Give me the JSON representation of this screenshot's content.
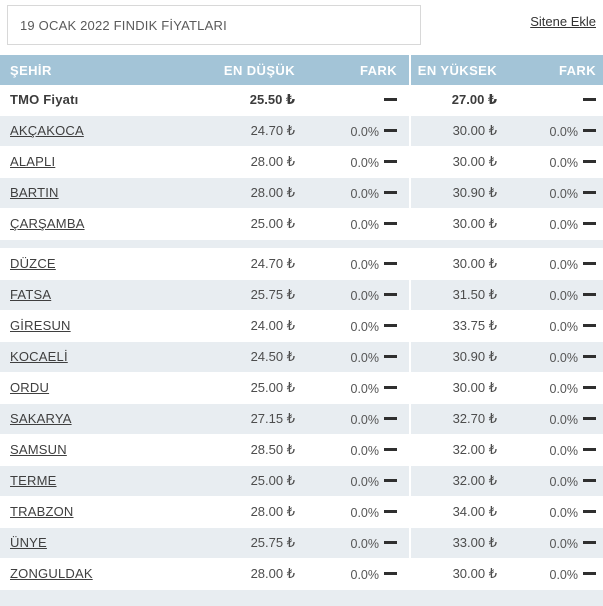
{
  "page": {
    "title": "19 OCAK 2022 FINDIK FİYATLARI",
    "add_link_label": "Sitene Ekle"
  },
  "colors": {
    "header_bg": "#a3c4d7",
    "header_text": "#ffffff",
    "stripe_row_bg": "#e8edf1",
    "white_row_bg": "#ffffff",
    "body_text": "#4d4d4d",
    "dash_icon": "#2f2f2f"
  },
  "table": {
    "headers": {
      "city": "ŞEHİR",
      "lowest": "EN DÜŞÜK",
      "diff_low": "FARK",
      "highest": "EN YÜKSEK",
      "diff_high": "FARK"
    },
    "rows": [
      {
        "city": "TMO Fiyatı",
        "lowest": "25.50 ₺",
        "diff_low": "",
        "highest": "27.00 ₺",
        "diff_high": "",
        "emphasis": true,
        "link": false
      },
      {
        "city": "AKÇAKOCA",
        "lowest": "24.70 ₺",
        "diff_low": "0.0%",
        "highest": "30.00 ₺",
        "diff_high": "0.0%",
        "emphasis": false,
        "link": true
      },
      {
        "city": "ALAPLI",
        "lowest": "28.00 ₺",
        "diff_low": "0.0%",
        "highest": "30.00 ₺",
        "diff_high": "0.0%",
        "emphasis": false,
        "link": true
      },
      {
        "city": "BARTIN",
        "lowest": "28.00 ₺",
        "diff_low": "0.0%",
        "highest": "30.90 ₺",
        "diff_high": "0.0%",
        "emphasis": false,
        "link": true
      },
      {
        "city": "ÇARŞAMBA",
        "lowest": "25.00 ₺",
        "diff_low": "0.0%",
        "highest": "30.00 ₺",
        "diff_high": "0.0%",
        "emphasis": false,
        "link": true
      },
      {
        "separator": true
      },
      {
        "city": "DÜZCE",
        "lowest": "24.70 ₺",
        "diff_low": "0.0%",
        "highest": "30.00 ₺",
        "diff_high": "0.0%",
        "emphasis": false,
        "link": true
      },
      {
        "city": "FATSA",
        "lowest": "25.75 ₺",
        "diff_low": "0.0%",
        "highest": "31.50 ₺",
        "diff_high": "0.0%",
        "emphasis": false,
        "link": true
      },
      {
        "city": "GİRESUN",
        "lowest": "24.00 ₺",
        "diff_low": "0.0%",
        "highest": "33.75 ₺",
        "diff_high": "0.0%",
        "emphasis": false,
        "link": true
      },
      {
        "city": "KOCAELİ",
        "lowest": "24.50 ₺",
        "diff_low": "0.0%",
        "highest": "30.90 ₺",
        "diff_high": "0.0%",
        "emphasis": false,
        "link": true
      },
      {
        "city": "ORDU",
        "lowest": "25.00 ₺",
        "diff_low": "0.0%",
        "highest": "30.00 ₺",
        "diff_high": "0.0%",
        "emphasis": false,
        "link": true
      },
      {
        "city": "SAKARYA",
        "lowest": "27.15 ₺",
        "diff_low": "0.0%",
        "highest": "32.70 ₺",
        "diff_high": "0.0%",
        "emphasis": false,
        "link": true
      },
      {
        "city": "SAMSUN",
        "lowest": "28.50 ₺",
        "diff_low": "0.0%",
        "highest": "32.00 ₺",
        "diff_high": "0.0%",
        "emphasis": false,
        "link": true
      },
      {
        "city": "TERME",
        "lowest": "25.00 ₺",
        "diff_low": "0.0%",
        "highest": "32.00 ₺",
        "diff_high": "0.0%",
        "emphasis": false,
        "link": true
      },
      {
        "city": "TRABZON",
        "lowest": "28.00 ₺",
        "diff_low": "0.0%",
        "highest": "34.00 ₺",
        "diff_high": "0.0%",
        "emphasis": false,
        "link": true
      },
      {
        "city": "ÜNYE",
        "lowest": "25.75 ₺",
        "diff_low": "0.0%",
        "highest": "33.00 ₺",
        "diff_high": "0.0%",
        "emphasis": false,
        "link": true
      },
      {
        "city": "ZONGULDAK",
        "lowest": "28.00 ₺",
        "diff_low": "0.0%",
        "highest": "30.00 ₺",
        "diff_high": "0.0%",
        "emphasis": false,
        "link": true
      }
    ]
  }
}
